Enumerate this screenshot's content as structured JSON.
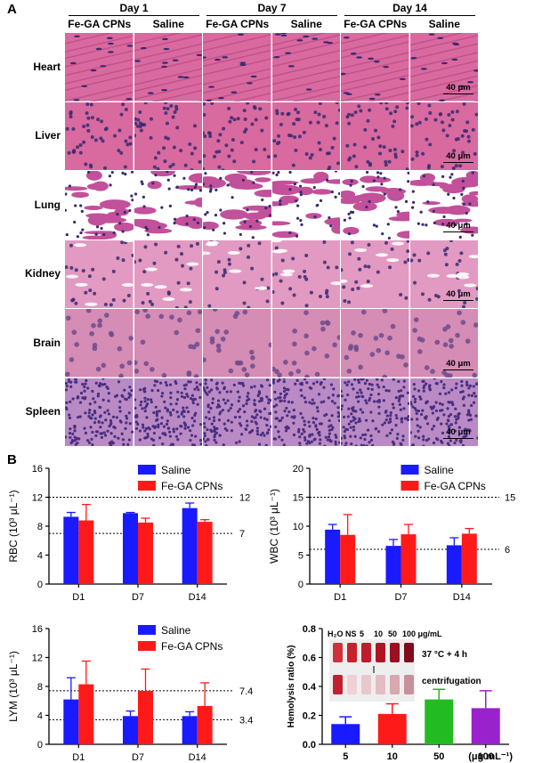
{
  "panel_a": {
    "letter": "A",
    "days": [
      "Day 1",
      "Day 7",
      "Day 14"
    ],
    "columns": [
      "Fe-GA CPNs",
      "Saline",
      "Fe-GA CPNs",
      "Saline",
      "Fe-GA CPNs",
      "Saline"
    ],
    "rows": [
      {
        "label": "Heart",
        "style": "heart"
      },
      {
        "label": "Liver",
        "style": "liver"
      },
      {
        "label": "Lung",
        "style": "lung"
      },
      {
        "label": "Kidney",
        "style": "kidney"
      },
      {
        "label": "Brain",
        "style": "brain"
      },
      {
        "label": "Spleen",
        "style": "spleen"
      }
    ],
    "scale_bar": "40 μm",
    "colors": {
      "pink": "#d86aa0",
      "dark_pink": "#b8407e",
      "nucleus": "#3a2a6e",
      "spleen_bg": "#b98ac4"
    }
  },
  "panel_b": {
    "letter": "B"
  },
  "chart_data": [
    {
      "type": "bar",
      "ylabel": "RBC (10³ μL⁻¹)",
      "categories": [
        "D1",
        "D7",
        "D14"
      ],
      "ylim": [
        0,
        16
      ],
      "yticks": [
        0,
        4,
        8,
        12,
        16
      ],
      "series": [
        {
          "name": "Saline",
          "color": "#1a1aff",
          "values": [
            9.3,
            9.8,
            10.5
          ],
          "errors": [
            0.6,
            0.1,
            0.7
          ]
        },
        {
          "name": "Fe-GA CPNs",
          "color": "#ff1a1a",
          "values": [
            8.8,
            8.5,
            8.6
          ],
          "errors": [
            2.2,
            0.6,
            0.3
          ]
        }
      ],
      "reference_lines": [
        {
          "value": 12,
          "label": "12"
        },
        {
          "value": 7,
          "label": "7"
        }
      ],
      "legend": "top-right"
    },
    {
      "type": "bar",
      "ylabel": "WBC (10³ μL⁻¹)",
      "categories": [
        "D1",
        "D7",
        "D14"
      ],
      "ylim": [
        0,
        20
      ],
      "yticks": [
        0,
        5,
        10,
        15,
        20
      ],
      "series": [
        {
          "name": "Saline",
          "color": "#1a1aff",
          "values": [
            9.4,
            6.6,
            6.7
          ],
          "errors": [
            0.9,
            1.1,
            1.3
          ]
        },
        {
          "name": "Fe-GA CPNs",
          "color": "#ff1a1a",
          "values": [
            8.5,
            8.6,
            8.7
          ],
          "errors": [
            3.5,
            1.7,
            0.9
          ]
        }
      ],
      "reference_lines": [
        {
          "value": 15,
          "label": "15"
        },
        {
          "value": 6,
          "label": "6"
        }
      ],
      "legend": "top-right"
    },
    {
      "type": "bar",
      "ylabel": "LYM (10³ μL⁻¹)",
      "categories": [
        "D1",
        "D7",
        "D14"
      ],
      "ylim": [
        0,
        16
      ],
      "yticks": [
        0,
        4,
        8,
        12,
        16
      ],
      "series": [
        {
          "name": "Saline",
          "color": "#1a1aff",
          "values": [
            6.2,
            3.9,
            3.9
          ],
          "errors": [
            3.0,
            0.7,
            0.6
          ]
        },
        {
          "name": "Fe-GA CPNs",
          "color": "#ff1a1a",
          "values": [
            8.3,
            7.4,
            5.3
          ],
          "errors": [
            3.2,
            3.0,
            3.2
          ]
        }
      ],
      "reference_lines": [
        {
          "value": 7.4,
          "label": "7.4"
        },
        {
          "value": 3.4,
          "label": "3.4"
        }
      ],
      "legend": "top-right"
    },
    {
      "type": "bar",
      "ylabel": "Hemolysis ratio (%)",
      "categories": [
        "5",
        "10",
        "50",
        "100"
      ],
      "x_unit": "(μg mL⁻¹)",
      "ylim": [
        0,
        0.8
      ],
      "yticks": [
        0.0,
        0.2,
        0.4,
        0.6,
        0.8
      ],
      "ytick_labels": [
        "0.0",
        "0.2",
        "0.4",
        "0.6",
        "0.8"
      ],
      "series": [
        {
          "name": "",
          "colors": [
            "#1a1aff",
            "#ff1a1a",
            "#22bb22",
            "#9922cc"
          ],
          "values": [
            0.14,
            0.21,
            0.31,
            0.25
          ],
          "errors": [
            0.05,
            0.07,
            0.07,
            0.12
          ]
        }
      ],
      "inset": {
        "labels": [
          "H₂O",
          "NS",
          "5",
          "10",
          "50",
          "100 μg/mL"
        ],
        "condition": "37 °C + 4 h",
        "step": "centrifugation"
      }
    }
  ]
}
